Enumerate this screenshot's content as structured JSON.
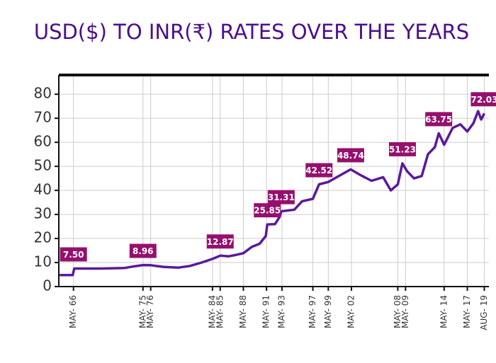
{
  "chart_data": {
    "type": "line",
    "title": "USD($) TO INR(₹) RATES OVER THE YEARS",
    "series": [
      {
        "name": "USD to INR",
        "color": "#5a1a9a",
        "x": [
          1964.6,
          1966.3,
          1966.5,
          1970,
          1973,
          1974,
          1975.4,
          1976.4,
          1978,
          1980,
          1981.5,
          1983,
          1984.4,
          1985.4,
          1986.5,
          1987.5,
          1988.4,
          1989.5,
          1990.5,
          1991.3,
          1991.5,
          1992.5,
          1993.1,
          1993.3,
          1995,
          1996,
          1997.4,
          1998.2,
          1999.4,
          2000.5,
          2002.3,
          2003.5,
          2005,
          2006.5,
          2007.5,
          2008.4,
          2009,
          2009.6,
          2010.5,
          2011.5,
          2012.3,
          2013.2,
          2013.7,
          2014.4,
          2015.5,
          2016.5,
          2017.4,
          2018.2,
          2018.8,
          2019.2,
          2019.6
        ],
        "values": [
          4.76,
          4.76,
          7.5,
          7.5,
          7.7,
          8.3,
          8.96,
          8.9,
          8.2,
          7.9,
          8.6,
          10,
          11.5,
          12.87,
          12.6,
          13.2,
          13.9,
          16.5,
          17.8,
          21,
          25.85,
          26,
          29,
          31.31,
          32,
          35.5,
          36.5,
          42.52,
          43.5,
          45.5,
          48.74,
          46.5,
          44,
          45.5,
          40,
          42.5,
          51.23,
          48,
          45,
          46,
          55,
          58,
          63.75,
          59,
          66,
          67.5,
          64.5,
          68,
          73,
          69.5,
          72.03
        ]
      }
    ],
    "annotations": {
      "x": [
        1966.4,
        1975.4,
        1985.4,
        1991.5,
        1993.3,
        1998.2,
        2002.3,
        2009,
        2013.7,
        2019.6
      ],
      "values": [
        7.5,
        8.96,
        12.87,
        25.85,
        31.31,
        42.52,
        48.74,
        51.23,
        63.75,
        72.03
      ],
      "value_labels": [
        "7.50",
        "8.96",
        "12.87",
        "25.85",
        "31.31",
        "42.52",
        "48.74",
        "51.23",
        "63.75",
        "72.03"
      ]
    },
    "xlim": [
      1964.5,
      2020.2
    ],
    "xticks": [
      {
        "value": 1966.4,
        "label": "MAY- 66"
      },
      {
        "value": 1975.4,
        "label": "MAY- 75"
      },
      {
        "value": 1976.4,
        "label": "MAY- 76"
      },
      {
        "value": 1984.4,
        "label": "MAY- 84"
      },
      {
        "value": 1985.4,
        "label": "MAY- 85"
      },
      {
        "value": 1988.4,
        "label": "MAY- 88"
      },
      {
        "value": 1991.4,
        "label": "MAY- 91"
      },
      {
        "value": 1993.4,
        "label": "MAY- 93"
      },
      {
        "value": 1997.4,
        "label": "MAY- 97"
      },
      {
        "value": 1999.4,
        "label": "MAY- 99"
      },
      {
        "value": 2002.4,
        "label": "MAY- 02"
      },
      {
        "value": 2008.4,
        "label": "MAY- 08"
      },
      {
        "value": 2009.4,
        "label": "MAY- 09"
      },
      {
        "value": 2014.4,
        "label": "MAY- 14"
      },
      {
        "value": 2017.4,
        "label": "MAY- 17"
      },
      {
        "value": 2019.6,
        "label": "AUG- 19"
      }
    ],
    "ylim": [
      0,
      88
    ],
    "yticks": [
      0,
      10,
      20,
      30,
      40,
      50,
      60,
      70,
      80
    ],
    "grid": true
  }
}
